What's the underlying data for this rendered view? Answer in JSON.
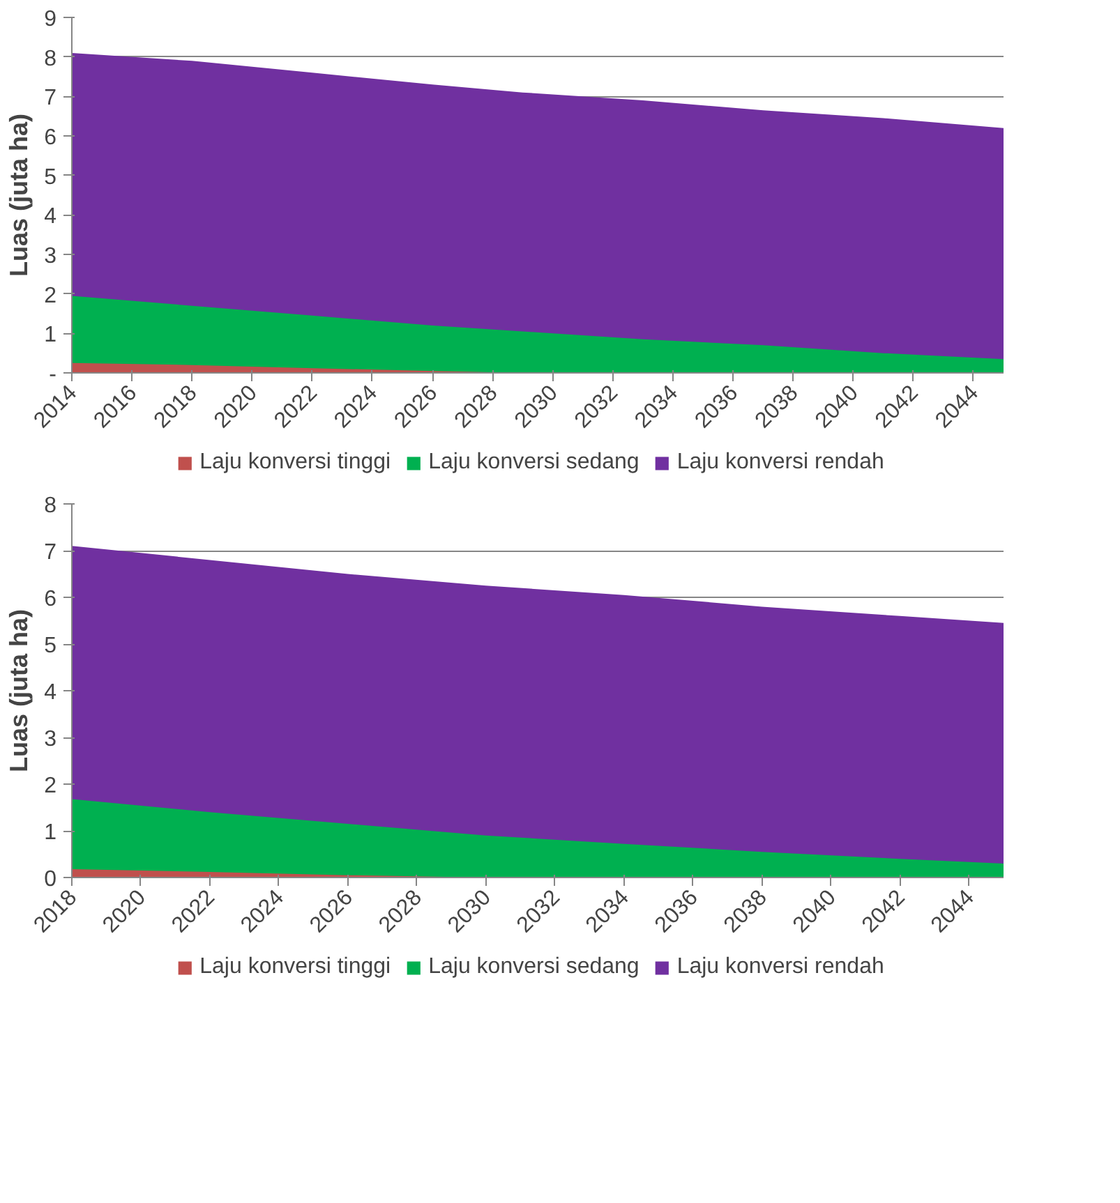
{
  "chart_data": [
    {
      "type": "area",
      "ylabel": "Luas (juta ha)",
      "xlim": [
        2014,
        2045
      ],
      "xticks": [
        2014,
        2016,
        2018,
        2020,
        2022,
        2024,
        2026,
        2028,
        2030,
        2032,
        2034,
        2036,
        2038,
        2040,
        2042,
        2044
      ],
      "ylim": [
        0,
        9
      ],
      "yticks": [
        {
          "value": 0,
          "label": "-"
        },
        1,
        2,
        3,
        4,
        5,
        6,
        7,
        8,
        9
      ],
      "grid": "y",
      "legend": "bottom",
      "x": [
        2014,
        2018,
        2022,
        2026,
        2029,
        2033,
        2037,
        2041,
        2045
      ],
      "series": [
        {
          "name": "Laju konversi tinggi",
          "color": "#c0504d",
          "values": [
            0.25,
            0.2,
            0.12,
            0.05,
            0,
            0,
            0,
            0,
            0
          ]
        },
        {
          "name": "Laju konversi sedang",
          "color": "#00b050",
          "values": [
            1.95,
            1.7,
            1.45,
            1.2,
            1.05,
            0.85,
            0.7,
            0.5,
            0.35
          ]
        },
        {
          "name": "Laju konversi rendah",
          "color": "#7030a0",
          "values": [
            8.1,
            7.9,
            7.6,
            7.3,
            7.1,
            6.9,
            6.65,
            6.45,
            6.2
          ]
        }
      ]
    },
    {
      "type": "area",
      "ylabel": "Luas (juta ha)",
      "xlim": [
        2018,
        2045
      ],
      "xticks": [
        2018,
        2020,
        2022,
        2024,
        2026,
        2028,
        2030,
        2032,
        2034,
        2036,
        2038,
        2040,
        2042,
        2044
      ],
      "ylim": [
        0,
        8
      ],
      "yticks": [
        0,
        1,
        2,
        3,
        4,
        5,
        6,
        7,
        8
      ],
      "grid": "y",
      "legend": "bottom",
      "x": [
        2018,
        2022,
        2026,
        2030,
        2034,
        2038,
        2042,
        2045
      ],
      "series": [
        {
          "name": "Laju konversi tinggi",
          "color": "#c0504d",
          "values": [
            0.18,
            0.12,
            0.05,
            0,
            0,
            0,
            0,
            0
          ]
        },
        {
          "name": "Laju konversi sedang",
          "color": "#00b050",
          "values": [
            1.68,
            1.4,
            1.15,
            0.9,
            0.72,
            0.55,
            0.4,
            0.3
          ]
        },
        {
          "name": "Laju konversi rendah",
          "color": "#7030a0",
          "values": [
            7.1,
            6.8,
            6.5,
            6.25,
            6.05,
            5.8,
            5.6,
            5.45
          ]
        }
      ]
    }
  ]
}
